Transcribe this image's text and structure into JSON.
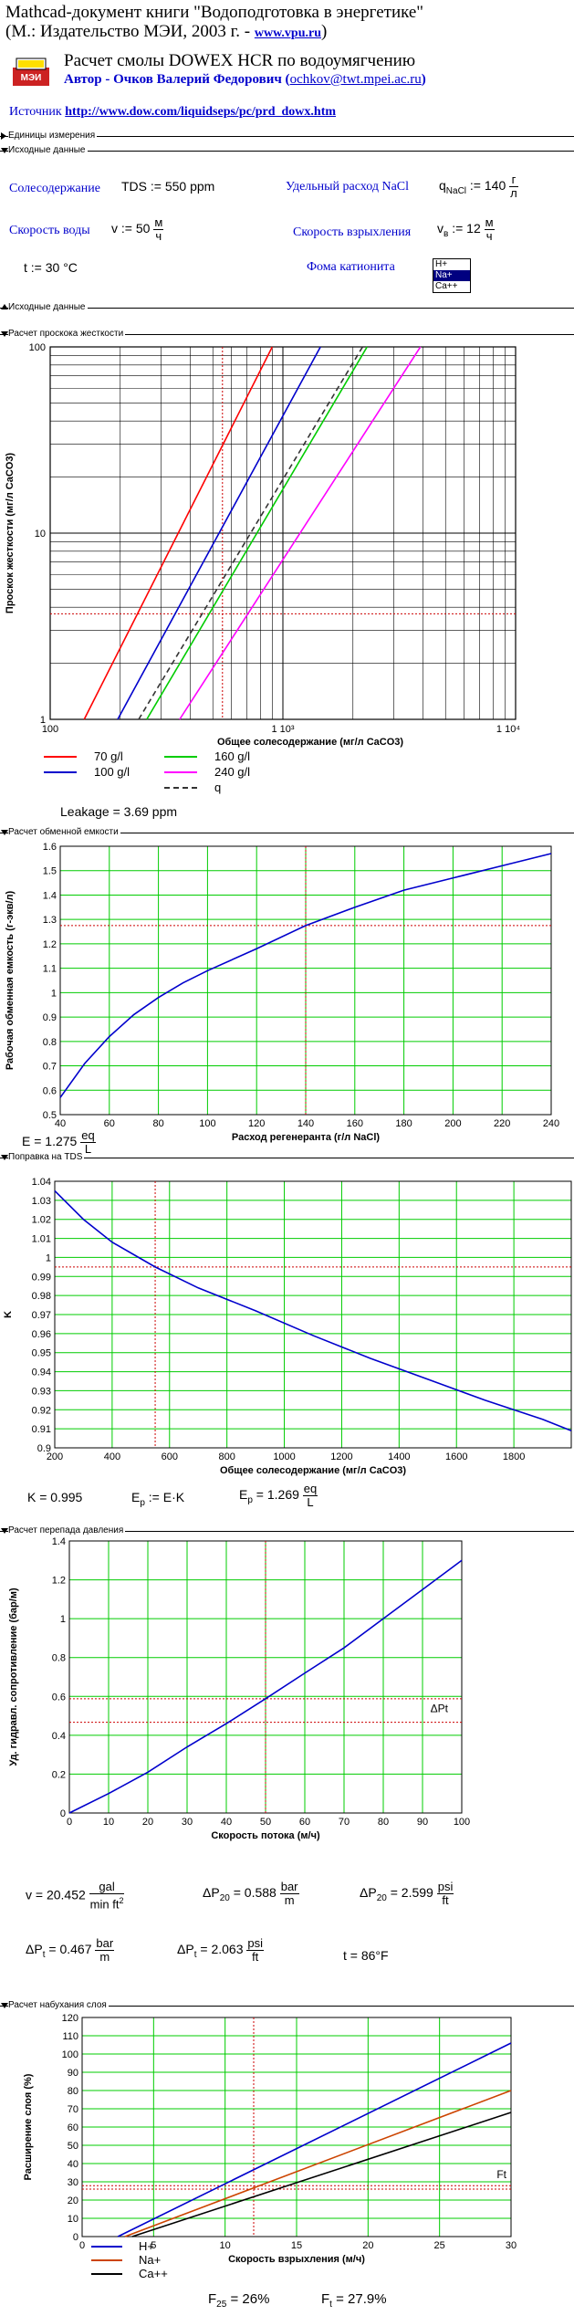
{
  "header": {
    "line1": "Mathcad-документ книги \"Водоподготовка в энергетике\"",
    "line2a": "(М.: Издательство МЭИ, 2003 г. - ",
    "line2link": "www.vpu.ru",
    "line2b": ")",
    "main_title": "Расчет смолы DOWEX HCR по водоумягчению",
    "author_a": "Автор - Очков Валерий Федорович (",
    "author_link": "ochkov@twt.mpei.ac.ru",
    "author_b": ")",
    "source_label": "Источник ",
    "source_link": "http://www.dow.com/liquidseps/pc/prd_dowx.htm",
    "logo_text": "МЭИ"
  },
  "sections": {
    "units": "Единицы измерения",
    "input": "Исходные данные",
    "input_end": "Исходные данные",
    "hardness": "Расчет проскока жесткости",
    "capacity": "Расчет обменной емкости",
    "tds": "Поправка на TDS",
    "pressure": "Расчет перепада давления",
    "swelling": "Расчет набухания слоя"
  },
  "inputs": {
    "tds_label": "Солесодержание",
    "tds_expr": "TDS := 550",
    "tds_unit": "ppm",
    "nacl_label": "Удельный расход NaCl",
    "nacl_var": "q",
    "nacl_sub": "NaCl",
    "nacl_val": ":= 140",
    "nacl_num": "г",
    "nacl_den": "л",
    "speed_label": "Скорость воды",
    "speed_expr": "v := 50",
    "speed_num": "м",
    "speed_den": "ч",
    "backwash_label": "Скорость взрыхления",
    "backwash_var": "v",
    "backwash_sub": "в",
    "backwash_val": ":= 12",
    "backwash_num": "м",
    "backwash_den": "ч",
    "temp_expr": "t := 30 °C",
    "cation_label": "Фома катионита",
    "cation_options": [
      "H+",
      "Na+",
      "Ca++"
    ],
    "cation_selected": "Na+"
  },
  "results": {
    "leakage": "Leakage = 3.69 ppm",
    "E_expr": "E = 1.275",
    "E_num": "eq",
    "E_den": "L",
    "K_expr": "K = 0.995",
    "Ep_def": "E",
    "Ep_def_sub": "p",
    "Ep_def_rhs": ":= E·K",
    "Ep_val_var": "E",
    "Ep_val_sub": "p",
    "Ep_val": "= 1.269",
    "Ep_num": "eq",
    "Ep_den": "L",
    "v_expr": "v = 20.452",
    "v_num": "gal",
    "v_den": "min ft",
    "v_den_sup": "2",
    "dP20a_var": "ΔP",
    "dP20a_sub": "20",
    "dP20a_val": "= 0.588",
    "dP20a_num": "bar",
    "dP20a_den": "m",
    "dP20b_var": "ΔP",
    "dP20b_sub": "20",
    "dP20b_val": "= 2.599",
    "dP20b_num": "psi",
    "dP20b_den": "ft",
    "dPta_var": "ΔP",
    "dPta_sub": "t",
    "dPta_val": "= 0.467",
    "dPta_num": "bar",
    "dPta_den": "m",
    "dPtb_var": "ΔP",
    "dPtb_sub": "t",
    "dPtb_val": "= 2.063",
    "dPtb_num": "psi",
    "dPtb_den": "ft",
    "t_f": "t = 86°F",
    "F25_var": "F",
    "F25_sub": "25",
    "F25_val": "= 26%",
    "Ft_var": "F",
    "Ft_sub": "t",
    "Ft_val": "= 27.9%"
  },
  "colors": {
    "blue": "#0000cc",
    "red": "#ff0000",
    "green": "#00cc00",
    "magenta": "#ff00ff",
    "brown": "#cc4400",
    "plot_grid_green": "#00cc00",
    "link": "#0000cc"
  },
  "chart_data": [
    {
      "type": "line",
      "title": "",
      "xlabel": "Общее солесодержание (мг/л CaCO3)",
      "ylabel": "Проскок жесткости (мг/л CaCO3)",
      "xscale": "log",
      "yscale": "log",
      "xlim": [
        100,
        10000
      ],
      "ylim": [
        1,
        100
      ],
      "xticks": [
        "100",
        "1 10³",
        "1 10⁴"
      ],
      "yticks": [
        "1",
        "10",
        "100"
      ],
      "grid": true,
      "legend_position": "bottom",
      "series": [
        {
          "name": "70 g/l",
          "color": "#ff0000",
          "x": [
            140,
            900
          ],
          "y": [
            1,
            100
          ]
        },
        {
          "name": "100 g/l",
          "color": "#0000cc",
          "x": [
            195,
            1450
          ],
          "y": [
            1,
            100
          ]
        },
        {
          "name": "160 g/l",
          "color": "#00cc00",
          "x": [
            260,
            2300
          ],
          "y": [
            1,
            100
          ]
        },
        {
          "name": "240 g/l",
          "color": "#ff00ff",
          "x": [
            360,
            3900
          ],
          "y": [
            1,
            100
          ]
        },
        {
          "name": "q",
          "color": "#333333",
          "dash": true,
          "x": [
            240,
            2200
          ],
          "y": [
            1,
            100
          ]
        }
      ],
      "markers": {
        "x": 550,
        "y": 3.69
      }
    },
    {
      "type": "line",
      "title": "",
      "xlabel": "Расход регенеранта (г/л NaCl)",
      "ylabel": "Рабочая обменная емкость (г-экв/л)",
      "xlim": [
        40,
        240
      ],
      "ylim": [
        0.5,
        1.6
      ],
      "xticks": [
        40,
        60,
        80,
        100,
        120,
        140,
        160,
        180,
        200,
        220,
        240
      ],
      "yticks": [
        0.5,
        0.6,
        0.7,
        0.8,
        0.9,
        1.0,
        1.1,
        1.2,
        1.3,
        1.4,
        1.5,
        1.6
      ],
      "grid": true,
      "series": [
        {
          "name": "",
          "color": "#0000cc",
          "x": [
            40,
            50,
            60,
            70,
            80,
            90,
            100,
            120,
            140,
            160,
            180,
            200,
            220,
            240
          ],
          "y": [
            0.57,
            0.71,
            0.82,
            0.91,
            0.98,
            1.04,
            1.09,
            1.18,
            1.275,
            1.35,
            1.42,
            1.47,
            1.52,
            1.57
          ]
        }
      ],
      "markers": {
        "x": 140,
        "y": 1.275
      }
    },
    {
      "type": "line",
      "title": "",
      "xlabel": "Общее солесодержание (мг/л CaCO3)",
      "ylabel": "K",
      "xlim": [
        200,
        2000
      ],
      "ylim": [
        0.9,
        1.04
      ],
      "xticks": [
        200,
        400,
        600,
        800,
        1000,
        1200,
        1400,
        1600,
        1800
      ],
      "yticks": [
        0.9,
        0.91,
        0.92,
        0.93,
        0.94,
        0.95,
        0.96,
        0.97,
        0.98,
        0.99,
        1,
        1.01,
        1.02,
        1.03,
        1.04
      ],
      "grid": true,
      "series": [
        {
          "name": "",
          "color": "#0000cc",
          "x": [
            200,
            300,
            400,
            550,
            700,
            900,
            1100,
            1300,
            1500,
            1700,
            1900,
            2000
          ],
          "y": [
            1.035,
            1.02,
            1.008,
            0.995,
            0.984,
            0.972,
            0.959,
            0.947,
            0.936,
            0.925,
            0.915,
            0.909
          ]
        }
      ],
      "markers": {
        "x": 550,
        "y": 0.995
      }
    },
    {
      "type": "line",
      "title": "",
      "xlabel": "Скорость потока (м/ч)",
      "ylabel": "Уд. гидравл. сопротивление (бар/м)",
      "xlim": [
        0,
        100
      ],
      "ylim": [
        0,
        1.4
      ],
      "xticks": [
        0,
        10,
        20,
        30,
        40,
        50,
        60,
        70,
        80,
        90,
        100
      ],
      "yticks": [
        0,
        0.2,
        0.4,
        0.6,
        0.8,
        1.0,
        1.2,
        1.4
      ],
      "grid": true,
      "annotation": "ΔPt",
      "series": [
        {
          "name": "",
          "color": "#0000cc",
          "x": [
            0,
            10,
            20,
            30,
            40,
            50,
            60,
            70,
            80,
            90,
            100
          ],
          "y": [
            0.0,
            0.1,
            0.21,
            0.34,
            0.46,
            0.588,
            0.72,
            0.85,
            1.0,
            1.15,
            1.3
          ]
        }
      ],
      "markers": {
        "x": 50,
        "y": 0.588,
        "y2": 0.467
      }
    },
    {
      "type": "line",
      "title": "",
      "xlabel": "Скорость взрыхления (м/ч)",
      "ylabel": "Расширение слоя (%)",
      "xlim": [
        0,
        30
      ],
      "ylim": [
        0,
        120
      ],
      "xticks": [
        0,
        5,
        10,
        15,
        20,
        25,
        30
      ],
      "yticks": [
        0,
        10,
        20,
        30,
        40,
        50,
        60,
        70,
        80,
        90,
        100,
        110,
        120
      ],
      "grid": true,
      "legend_position": "bottom-left",
      "annotation": "Ft",
      "series": [
        {
          "name": "H+",
          "color": "#0000cc",
          "x": [
            2.5,
            30
          ],
          "y": [
            0,
            106
          ]
        },
        {
          "name": "Na+",
          "color": "#cc4400",
          "x": [
            3.0,
            30
          ],
          "y": [
            0,
            80
          ]
        },
        {
          "name": "Ca++",
          "color": "#000000",
          "x": [
            3.5,
            30
          ],
          "y": [
            0,
            68
          ]
        }
      ],
      "markers": {
        "x": 12,
        "y": 27.9,
        "y2": 26
      }
    }
  ]
}
